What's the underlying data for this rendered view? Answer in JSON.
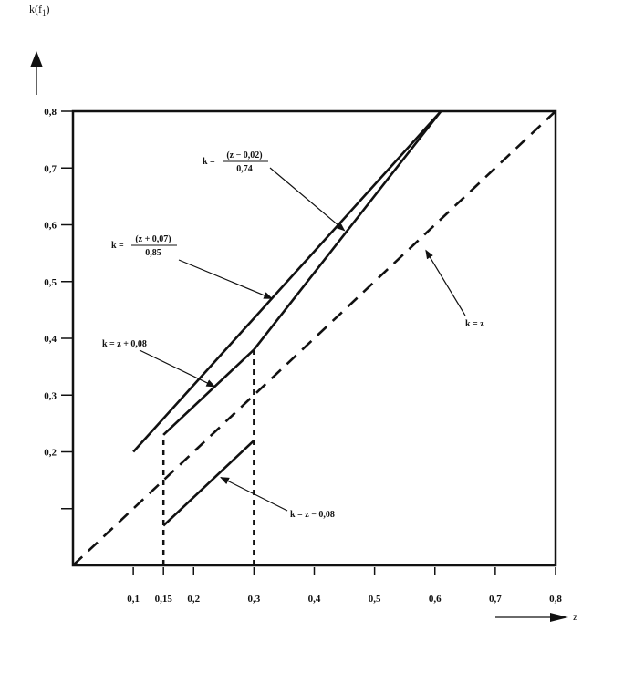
{
  "chart_data": {
    "type": "line",
    "ylabel_prefix": "k(f",
    "ylabel_sub": "1",
    "ylabel_suffix": ")",
    "xlabel": "z",
    "xlim": [
      0,
      0.8
    ],
    "ylim": [
      0,
      0.8
    ],
    "x_ticks": [
      {
        "value": 0.1,
        "label": "0,1"
      },
      {
        "value": 0.15,
        "label": "0,15"
      },
      {
        "value": 0.2,
        "label": "0,2"
      },
      {
        "value": 0.3,
        "label": "0,3"
      },
      {
        "value": 0.4,
        "label": "0,4"
      },
      {
        "value": 0.5,
        "label": "0,5"
      },
      {
        "value": 0.6,
        "label": "0,6"
      },
      {
        "value": 0.7,
        "label": "0,7"
      },
      {
        "value": 0.8,
        "label": "0,8"
      }
    ],
    "y_ticks": [
      {
        "value": 0.1,
        "label": ""
      },
      {
        "value": 0.2,
        "label": "0,2"
      },
      {
        "value": 0.3,
        "label": "0,3"
      },
      {
        "value": 0.4,
        "label": "0,4"
      },
      {
        "value": 0.5,
        "label": "0,5"
      },
      {
        "value": 0.6,
        "label": "0,6"
      },
      {
        "value": 0.7,
        "label": "0,7"
      },
      {
        "value": 0.8,
        "label": "0,8"
      }
    ],
    "series": [
      {
        "id": "k-eq-z",
        "style": "dashed",
        "points": [
          [
            0,
            0
          ],
          [
            0.8,
            0.8
          ]
        ]
      },
      {
        "id": "k-eq-z-plus-0.07-over-0.85",
        "style": "solid",
        "points": [
          [
            0.1,
            0.2
          ],
          [
            0.61,
            0.8
          ]
        ]
      },
      {
        "id": "k-eq-z-plus-0.08",
        "style": "solid",
        "points": [
          [
            0.15,
            0.23
          ],
          [
            0.3,
            0.38
          ]
        ]
      },
      {
        "id": "k-eq-z-minus-0.02-over-0.74",
        "style": "solid",
        "points": [
          [
            0.3,
            0.38
          ],
          [
            0.61,
            0.8
          ]
        ]
      },
      {
        "id": "k-eq-z-minus-0.08",
        "style": "solid",
        "points": [
          [
            0.15,
            0.07
          ],
          [
            0.3,
            0.22
          ]
        ]
      }
    ],
    "vertical_guides": [
      {
        "x": 0.15,
        "y_from": 0,
        "y_to": 0.23
      },
      {
        "x": 0.3,
        "y_from": 0,
        "y_to": 0.38
      }
    ],
    "annotations": [
      {
        "id": "ann-lin-minus",
        "text": "k = z − 0,08",
        "target": [
          0.245,
          0.155
        ]
      },
      {
        "id": "ann-lin-plus",
        "text": "k = z + 0,08",
        "target": [
          0.235,
          0.315
        ]
      },
      {
        "id": "ann-identity",
        "text": "k = z",
        "target": [
          0.585,
          0.555
        ]
      },
      {
        "id": "ann-frac-plus",
        "text_prefix": "k =",
        "numerator": "(z + 0,07)",
        "denominator": "0,85",
        "target": [
          0.33,
          0.47
        ]
      },
      {
        "id": "ann-frac-minus",
        "text_prefix": "k =",
        "numerator": "(z − 0,02)",
        "denominator": "0,74",
        "target": [
          0.45,
          0.59
        ]
      }
    ]
  }
}
